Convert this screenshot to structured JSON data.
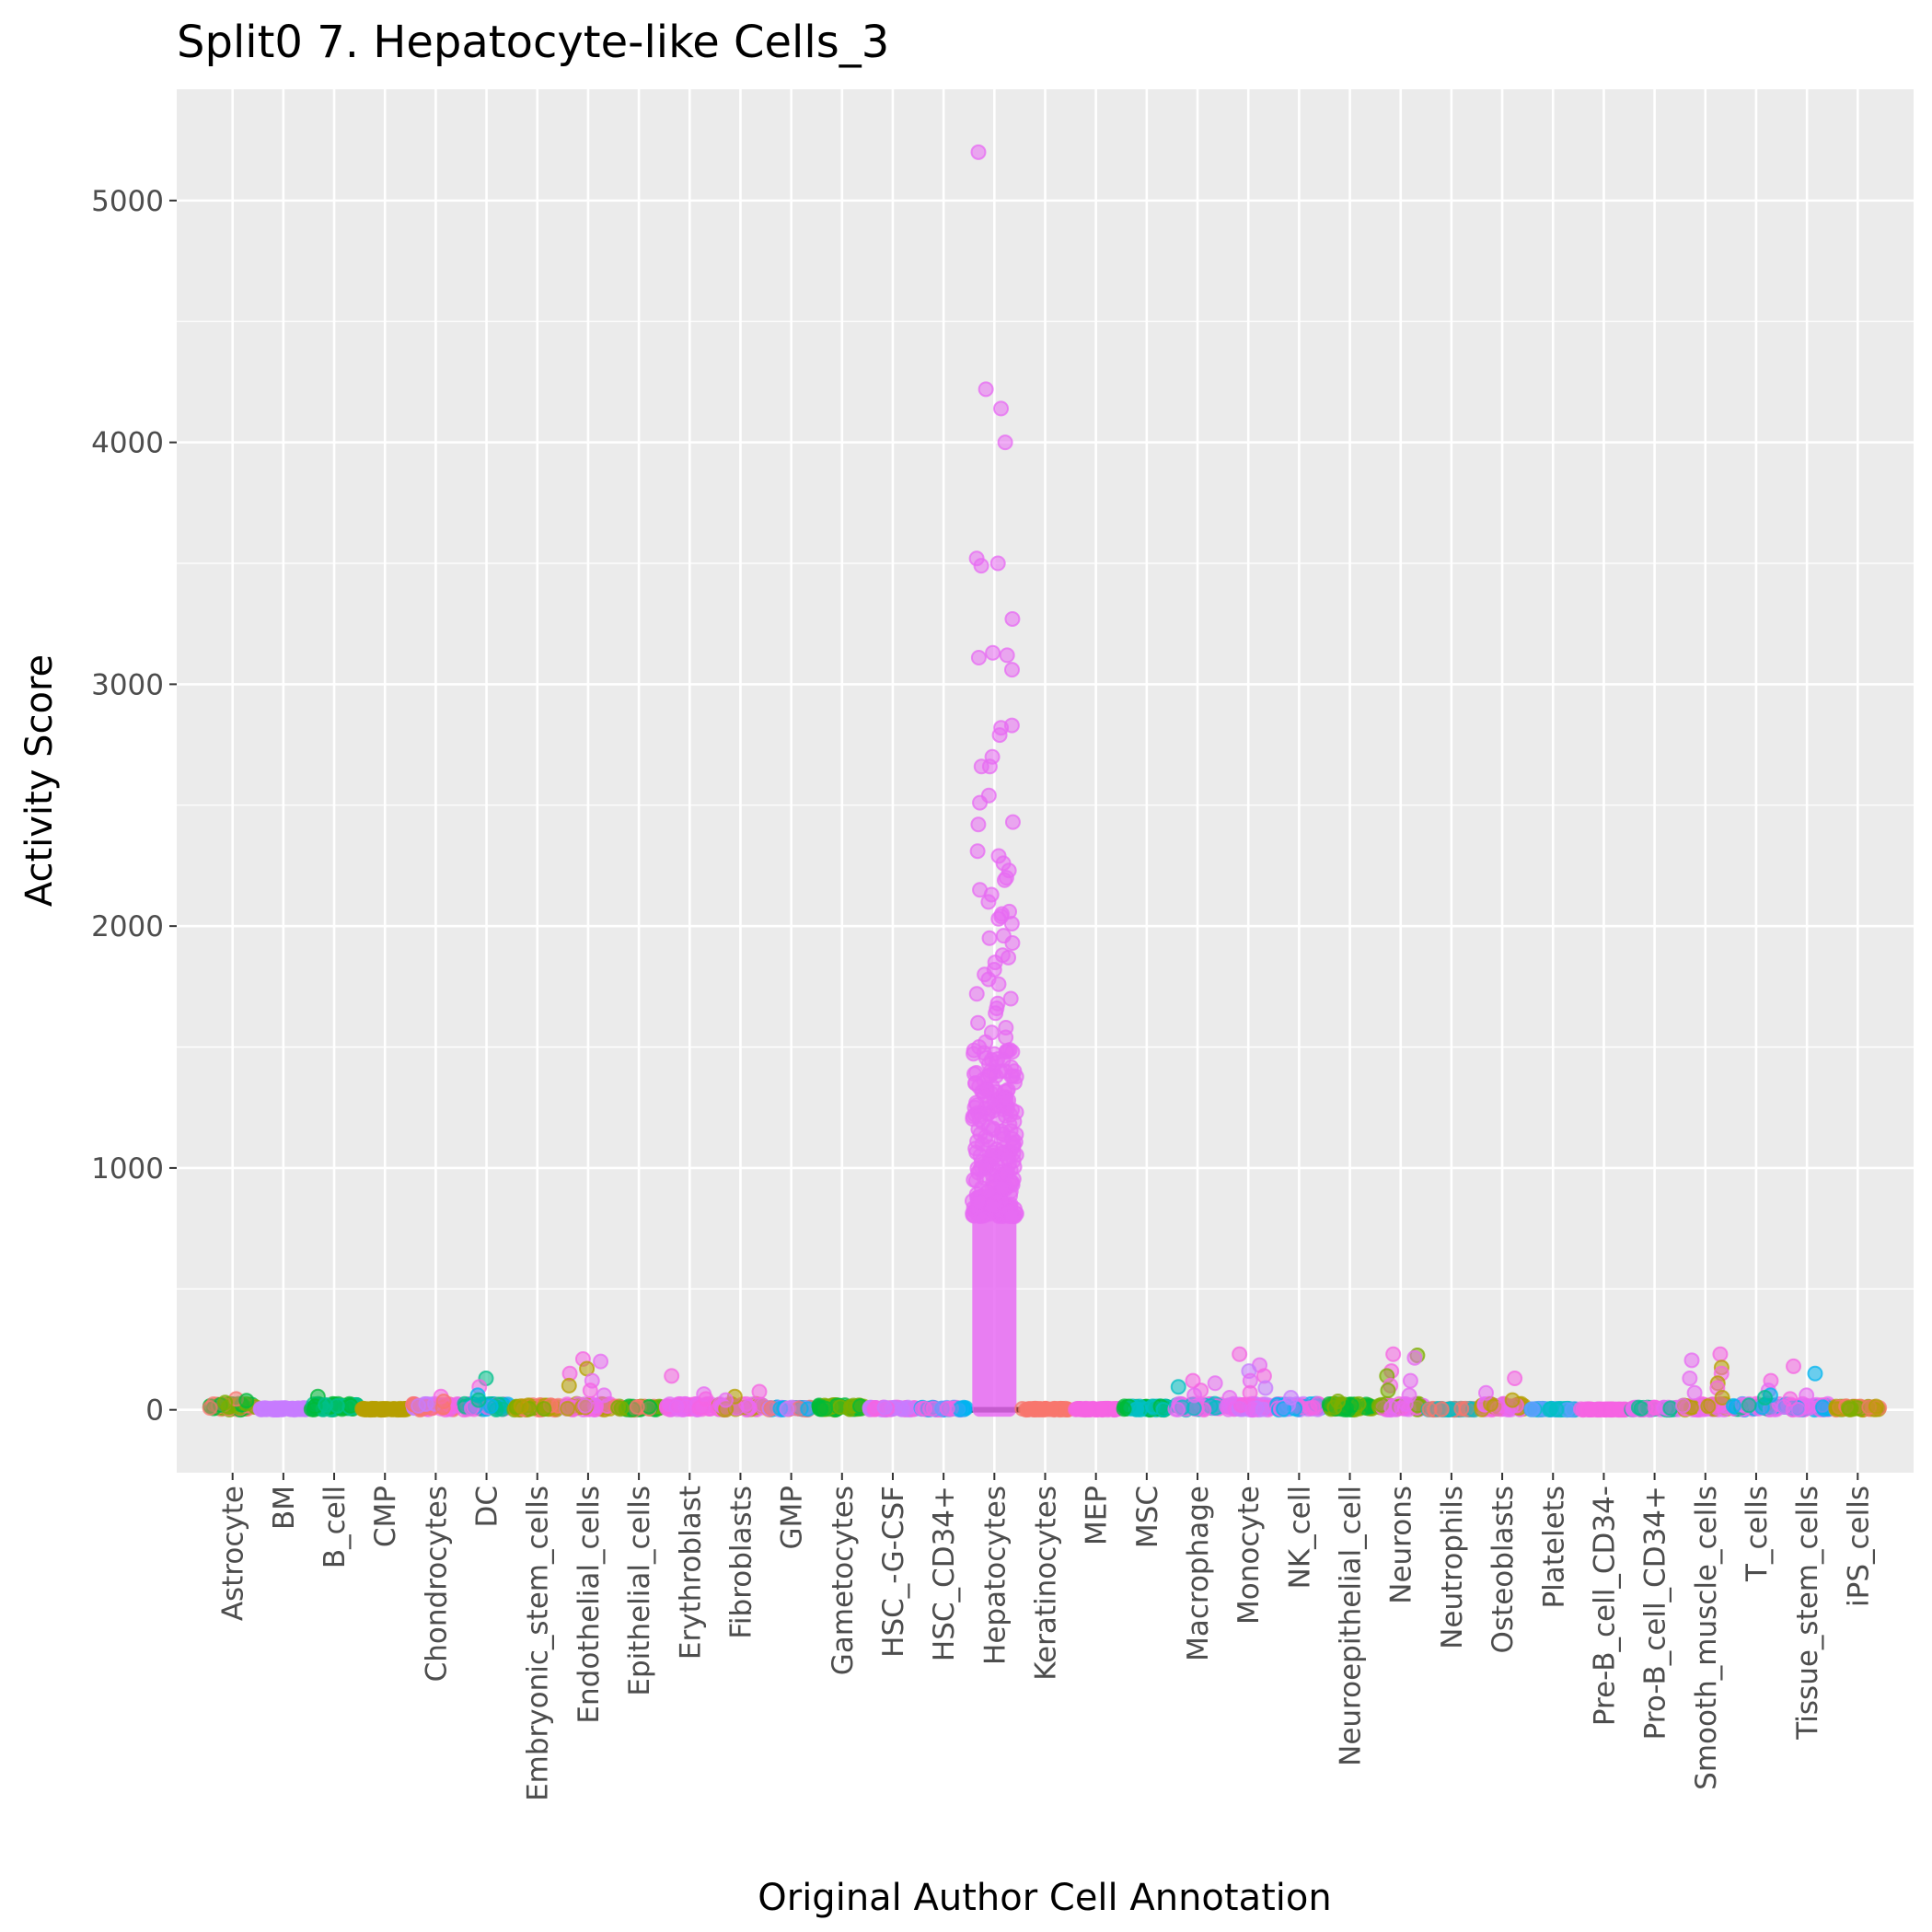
{
  "chart_data": {
    "type": "scatter",
    "title": "Split0 7. Hepatocyte-like Cells_3",
    "xlabel": "Original Author Cell Annotation",
    "ylabel": "Activity Score",
    "ylim": [
      -260,
      5460
    ],
    "y_ticks": [
      0,
      1000,
      2000,
      3000,
      4000,
      5000
    ],
    "grid": true,
    "legend": "none",
    "panel_color": "#ebebeb",
    "categories": [
      "Astrocyte",
      "BM",
      "B_cell",
      "CMP",
      "Chondrocytes",
      "DC",
      "Embryonic_stem_cells",
      "Endothelial_cells",
      "Epithelial_cells",
      "Erythroblast",
      "Fibroblasts",
      "GMP",
      "Gametocytes",
      "HSC_-G-CSF",
      "HSC_CD34+",
      "Hepatocytes",
      "Keratinocytes",
      "MEP",
      "MSC",
      "Macrophage",
      "Monocyte",
      "NK_cell",
      "Neuroepithelial_cell",
      "Neurons",
      "Neutrophils",
      "Osteoblasts",
      "Platelets",
      "Pre-B_cell_CD34-",
      "Pro-B_cell_CD34+",
      "Smooth_muscle_cells",
      "T_cells",
      "Tissue_stem_cells",
      "iPS_cells"
    ],
    "medians": [
      0,
      0,
      0,
      0,
      0,
      0,
      0,
      0,
      0,
      0,
      0,
      0,
      0,
      0,
      0,
      0,
      0,
      0,
      0,
      0,
      0,
      0,
      0,
      0,
      0,
      0,
      0,
      0,
      0,
      0,
      0,
      0,
      0
    ],
    "series": [
      {
        "category": "Astrocyte",
        "colors": [
          "#f8766d",
          "#00ba38",
          "#7cae00"
        ],
        "max": 45,
        "outliers": [
          45,
          38,
          30
        ]
      },
      {
        "category": "BM",
        "colors": [
          "#c77cff"
        ],
        "max": 8,
        "outliers": []
      },
      {
        "category": "B_cell",
        "colors": [
          "#00ba38",
          "#00c08b"
        ],
        "max": 55,
        "outliers": [
          55,
          20
        ]
      },
      {
        "category": "CMP",
        "colors": [
          "#b79f00"
        ],
        "max": 5,
        "outliers": []
      },
      {
        "category": "Chondrocytes",
        "colors": [
          "#f564e3",
          "#f8766d",
          "#c77cff"
        ],
        "max": 55,
        "outliers": [
          55,
          35
        ]
      },
      {
        "category": "DC",
        "colors": [
          "#00c08b",
          "#f564e3",
          "#00b4f0"
        ],
        "max": 130,
        "outliers": [
          130,
          95,
          60,
          40
        ]
      },
      {
        "category": "Embryonic_stem_cells",
        "colors": [
          "#b79f00",
          "#f8766d",
          "#7cae00"
        ],
        "max": 20,
        "outliers": []
      },
      {
        "category": "Endothelial_cells",
        "colors": [
          "#f564e3",
          "#e76bf3",
          "#b79f00"
        ],
        "max": 210,
        "outliers": [
          210,
          200,
          170,
          150,
          120,
          100,
          80,
          60
        ]
      },
      {
        "category": "Epithelial_cells",
        "colors": [
          "#00ba38",
          "#7cae00",
          "#f8766d"
        ],
        "max": 15,
        "outliers": []
      },
      {
        "category": "Erythroblast",
        "colors": [
          "#f564e3",
          "#e76bf3"
        ],
        "max": 140,
        "outliers": [
          140,
          65,
          45
        ]
      },
      {
        "category": "Fibroblasts",
        "colors": [
          "#f564e3",
          "#b79f00",
          "#e76bf3"
        ],
        "max": 75,
        "outliers": [
          75,
          55,
          40
        ]
      },
      {
        "category": "GMP",
        "colors": [
          "#f8766d",
          "#c77cff",
          "#00b4f0"
        ],
        "max": 10,
        "outliers": []
      },
      {
        "category": "Gametocytes",
        "colors": [
          "#7cae00",
          "#00ba38"
        ],
        "max": 20,
        "outliers": []
      },
      {
        "category": "HSC_-G-CSF",
        "colors": [
          "#f564e3",
          "#c77cff"
        ],
        "max": 10,
        "outliers": []
      },
      {
        "category": "HSC_CD34+",
        "colors": [
          "#00b4f0",
          "#619cff",
          "#f564e3"
        ],
        "max": 10,
        "outliers": []
      },
      {
        "category": "Hepatocytes",
        "colors": [
          "#e76bf3"
        ],
        "max": 5200,
        "outliers": [
          5200,
          4220,
          4140,
          4000,
          3520,
          3500,
          3490,
          3270,
          3130,
          3120,
          3110,
          3060,
          2830,
          2820,
          2790,
          2700,
          2660,
          2660,
          2540,
          2510,
          2430,
          2420,
          2310,
          2290,
          2260,
          2230,
          2200,
          2190,
          2150,
          2130,
          2100,
          2060,
          2050,
          2040,
          2030,
          2010,
          1960,
          1950,
          1930,
          1880,
          1870,
          1850,
          1820,
          1800,
          1780,
          1760,
          1720,
          1700,
          1680,
          1660,
          1640,
          1600,
          1580,
          1560,
          1540,
          1520,
          1500,
          1480,
          1450,
          1430,
          1400,
          1380,
          1350,
          1320,
          1300,
          1280,
          1260,
          1240,
          1220,
          1200,
          1180,
          1160,
          1140,
          1120,
          1100,
          1080,
          1060,
          1040,
          1020,
          1000,
          980,
          960,
          940,
          920,
          900,
          880,
          860,
          840,
          820,
          800
        ]
      },
      {
        "category": "Keratinocytes",
        "colors": [
          "#f8766d"
        ],
        "max": 5,
        "outliers": []
      },
      {
        "category": "MEP",
        "colors": [
          "#f564e3"
        ],
        "max": 5,
        "outliers": []
      },
      {
        "category": "MSC",
        "colors": [
          "#00ba38",
          "#00bfc4"
        ],
        "max": 15,
        "outliers": []
      },
      {
        "category": "Macrophage",
        "colors": [
          "#f564e3",
          "#e76bf3",
          "#00bfc4"
        ],
        "max": 120,
        "outliers": [
          120,
          110,
          95,
          80,
          60
        ]
      },
      {
        "category": "Monocyte",
        "colors": [
          "#f564e3",
          "#e76bf3",
          "#c77cff"
        ],
        "max": 230,
        "outliers": [
          230,
          185,
          160,
          140,
          120,
          90,
          70,
          50
        ]
      },
      {
        "category": "NK_cell",
        "colors": [
          "#c77cff",
          "#f564e3",
          "#00b4f0"
        ],
        "max": 50,
        "outliers": [
          50,
          25
        ]
      },
      {
        "category": "Neuroepithelial_cell",
        "colors": [
          "#7cae00",
          "#00ba38"
        ],
        "max": 35,
        "outliers": [
          35
        ]
      },
      {
        "category": "Neurons",
        "colors": [
          "#f564e3",
          "#7cae00",
          "#e76bf3"
        ],
        "max": 230,
        "outliers": [
          230,
          225,
          215,
          160,
          140,
          120,
          100,
          80,
          60
        ]
      },
      {
        "category": "Neutrophils",
        "colors": [
          "#00bfc4",
          "#f8766d"
        ],
        "max": 5,
        "outliers": []
      },
      {
        "category": "Osteoblasts",
        "colors": [
          "#f564e3",
          "#e76bf3",
          "#b79f00"
        ],
        "max": 130,
        "outliers": [
          130,
          70,
          40
        ]
      },
      {
        "category": "Platelets",
        "colors": [
          "#00bfc4",
          "#619cff"
        ],
        "max": 5,
        "outliers": []
      },
      {
        "category": "Pre-B_cell_CD34-",
        "colors": [
          "#f564e3"
        ],
        "max": 3,
        "outliers": []
      },
      {
        "category": "Pro-B_cell_CD34+",
        "colors": [
          "#f564e3",
          "#e76bf3",
          "#00c08b"
        ],
        "max": 10,
        "outliers": []
      },
      {
        "category": "Smooth_muscle_cells",
        "colors": [
          "#f564e3",
          "#e76bf3",
          "#b79f00"
        ],
        "max": 230,
        "outliers": [
          230,
          205,
          175,
          150,
          130,
          110,
          90,
          70,
          50
        ]
      },
      {
        "category": "T_cells",
        "colors": [
          "#f564e3",
          "#e76bf3",
          "#00b4f0",
          "#00c08b"
        ],
        "max": 120,
        "outliers": [
          120,
          80,
          60,
          50
        ]
      },
      {
        "category": "Tissue_stem_cells",
        "colors": [
          "#f564e3",
          "#00b4f0",
          "#e76bf3"
        ],
        "max": 180,
        "outliers": [
          180,
          150,
          60,
          45
        ]
      },
      {
        "category": "iPS_cells",
        "colors": [
          "#f8766d",
          "#b79f00",
          "#7cae00"
        ],
        "max": 15,
        "outliers": []
      }
    ]
  }
}
